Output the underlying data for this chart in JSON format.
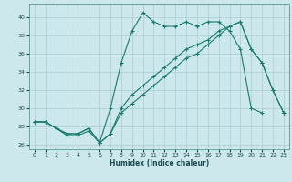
{
  "title": "",
  "xlabel": "Humidex (Indice chaleur)",
  "bg_color": "#cce8ec",
  "grid_color": "#aaccd4",
  "line_color": "#1a7a6e",
  "xlim": [
    -0.5,
    23.5
  ],
  "ylim": [
    25.5,
    41.5
  ],
  "xticks": [
    0,
    1,
    2,
    3,
    4,
    5,
    6,
    7,
    8,
    9,
    10,
    11,
    12,
    13,
    14,
    15,
    16,
    17,
    18,
    19,
    20,
    21,
    22,
    23
  ],
  "yticks": [
    26,
    28,
    30,
    32,
    34,
    36,
    38,
    40
  ],
  "line1_x": [
    0,
    1,
    2,
    3,
    4,
    5,
    6,
    7,
    8,
    9,
    10,
    11,
    12,
    13,
    14,
    15,
    16,
    17,
    18,
    19,
    20,
    21,
    22,
    23
  ],
  "line1_y": [
    28.5,
    28.5,
    27.8,
    27.0,
    27.0,
    27.5,
    26.2,
    27.2,
    29.5,
    30.5,
    31.5,
    32.5,
    33.5,
    34.5,
    35.5,
    36.0,
    37.0,
    38.0,
    39.0,
    39.5,
    36.5,
    35.0,
    32.0,
    29.5
  ],
  "line2_x": [
    0,
    1,
    2,
    3,
    4,
    5,
    6,
    7,
    8,
    9,
    10,
    11,
    12,
    13,
    14,
    15,
    16,
    17,
    18,
    19,
    20,
    21
  ],
  "line2_y": [
    28.5,
    28.5,
    27.8,
    27.2,
    27.2,
    27.8,
    26.2,
    30.0,
    35.0,
    38.5,
    40.5,
    39.5,
    39.0,
    39.0,
    39.5,
    39.0,
    39.5,
    39.5,
    38.5,
    36.5,
    30.0,
    29.5
  ],
  "line3_x": [
    0,
    1,
    2,
    3,
    4,
    5,
    6,
    7,
    8,
    9,
    10,
    11,
    12,
    13,
    14,
    15,
    16,
    17,
    18,
    19,
    20,
    21,
    22,
    23
  ],
  "line3_y": [
    28.5,
    28.5,
    27.8,
    27.2,
    27.2,
    27.8,
    26.2,
    27.2,
    30.0,
    31.5,
    32.5,
    33.5,
    34.5,
    35.5,
    36.5,
    37.0,
    37.5,
    38.5,
    39.0,
    39.5,
    36.5,
    35.0,
    32.0,
    29.5
  ]
}
